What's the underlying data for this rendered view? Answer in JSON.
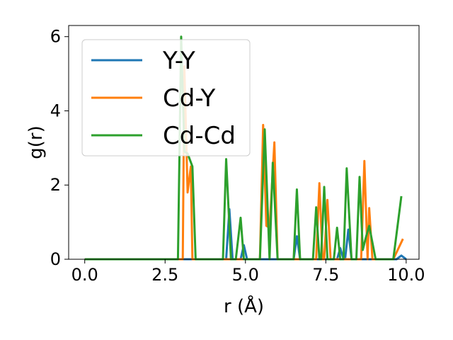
{
  "chart_data": {
    "type": "line",
    "title": "",
    "xlabel": "r (Å)",
    "ylabel": "g(r)",
    "xlim": [
      -0.5,
      10.4
    ],
    "ylim": [
      0,
      6.3
    ],
    "xticks": [
      0.0,
      2.5,
      5.0,
      7.5,
      10.0
    ],
    "xtick_labels": [
      "0.0",
      "2.5",
      "5.0",
      "7.5",
      "10.0"
    ],
    "yticks": [
      0,
      2,
      4,
      6
    ],
    "ytick_labels": [
      "0",
      "2",
      "4",
      "6"
    ],
    "grid": false,
    "legend_position": "upper-left",
    "series": [
      {
        "name": "Y-Y",
        "color": "#1f77b4",
        "points": [
          [
            0.0,
            0
          ],
          [
            4.4,
            0
          ],
          [
            4.5,
            1.35
          ],
          [
            4.6,
            0
          ],
          [
            4.85,
            0
          ],
          [
            4.95,
            0.38
          ],
          [
            5.05,
            0
          ],
          [
            6.5,
            0
          ],
          [
            6.6,
            0.62
          ],
          [
            6.7,
            0
          ],
          [
            7.85,
            0
          ],
          [
            7.95,
            0.3
          ],
          [
            8.05,
            0
          ],
          [
            8.1,
            0
          ],
          [
            8.2,
            0.8
          ],
          [
            8.3,
            0
          ],
          [
            9.7,
            0
          ],
          [
            9.85,
            0.1
          ],
          [
            10.0,
            0
          ]
        ]
      },
      {
        "name": "Cd-Y",
        "color": "#ff7f0e",
        "points": [
          [
            0.0,
            0
          ],
          [
            3.05,
            0
          ],
          [
            3.1,
            5.2
          ],
          [
            3.2,
            1.8
          ],
          [
            3.3,
            2.5
          ],
          [
            3.35,
            0
          ],
          [
            5.45,
            0
          ],
          [
            5.55,
            3.62
          ],
          [
            5.65,
            0.9
          ],
          [
            5.75,
            0.85
          ],
          [
            5.9,
            3.15
          ],
          [
            6.0,
            0
          ],
          [
            7.2,
            0
          ],
          [
            7.3,
            2.05
          ],
          [
            7.4,
            0
          ],
          [
            7.45,
            0
          ],
          [
            7.55,
            1.6
          ],
          [
            7.65,
            0
          ],
          [
            8.6,
            0
          ],
          [
            8.7,
            2.65
          ],
          [
            8.8,
            0
          ],
          [
            8.85,
            1.38
          ],
          [
            8.95,
            0
          ],
          [
            9.6,
            0
          ],
          [
            9.9,
            0.55
          ]
        ]
      },
      {
        "name": "Cd-Cd",
        "color": "#2ca02c",
        "points": [
          [
            0.0,
            0
          ],
          [
            2.9,
            0
          ],
          [
            3.0,
            6.0
          ],
          [
            3.1,
            2.9
          ],
          [
            3.2,
            2.85
          ],
          [
            3.35,
            2.5
          ],
          [
            3.45,
            0
          ],
          [
            4.3,
            0
          ],
          [
            4.4,
            2.7
          ],
          [
            4.55,
            0
          ],
          [
            4.7,
            0
          ],
          [
            4.85,
            1.12
          ],
          [
            4.95,
            0
          ],
          [
            5.45,
            0
          ],
          [
            5.6,
            3.5
          ],
          [
            5.75,
            0
          ],
          [
            5.85,
            2.6
          ],
          [
            6.0,
            0
          ],
          [
            6.5,
            0
          ],
          [
            6.6,
            1.88
          ],
          [
            6.7,
            0
          ],
          [
            7.1,
            0
          ],
          [
            7.2,
            1.4
          ],
          [
            7.3,
            0
          ],
          [
            7.35,
            0
          ],
          [
            7.45,
            1.95
          ],
          [
            7.55,
            0
          ],
          [
            7.75,
            0
          ],
          [
            7.85,
            0.85
          ],
          [
            7.95,
            0
          ],
          [
            8.05,
            0
          ],
          [
            8.15,
            2.45
          ],
          [
            8.3,
            0
          ],
          [
            8.45,
            0
          ],
          [
            8.55,
            2.22
          ],
          [
            8.65,
            0.25
          ],
          [
            8.75,
            0.6
          ],
          [
            8.85,
            0.9
          ],
          [
            9.05,
            0
          ],
          [
            9.2,
            0
          ],
          [
            9.6,
            0
          ],
          [
            9.85,
            1.7
          ]
        ]
      }
    ]
  }
}
